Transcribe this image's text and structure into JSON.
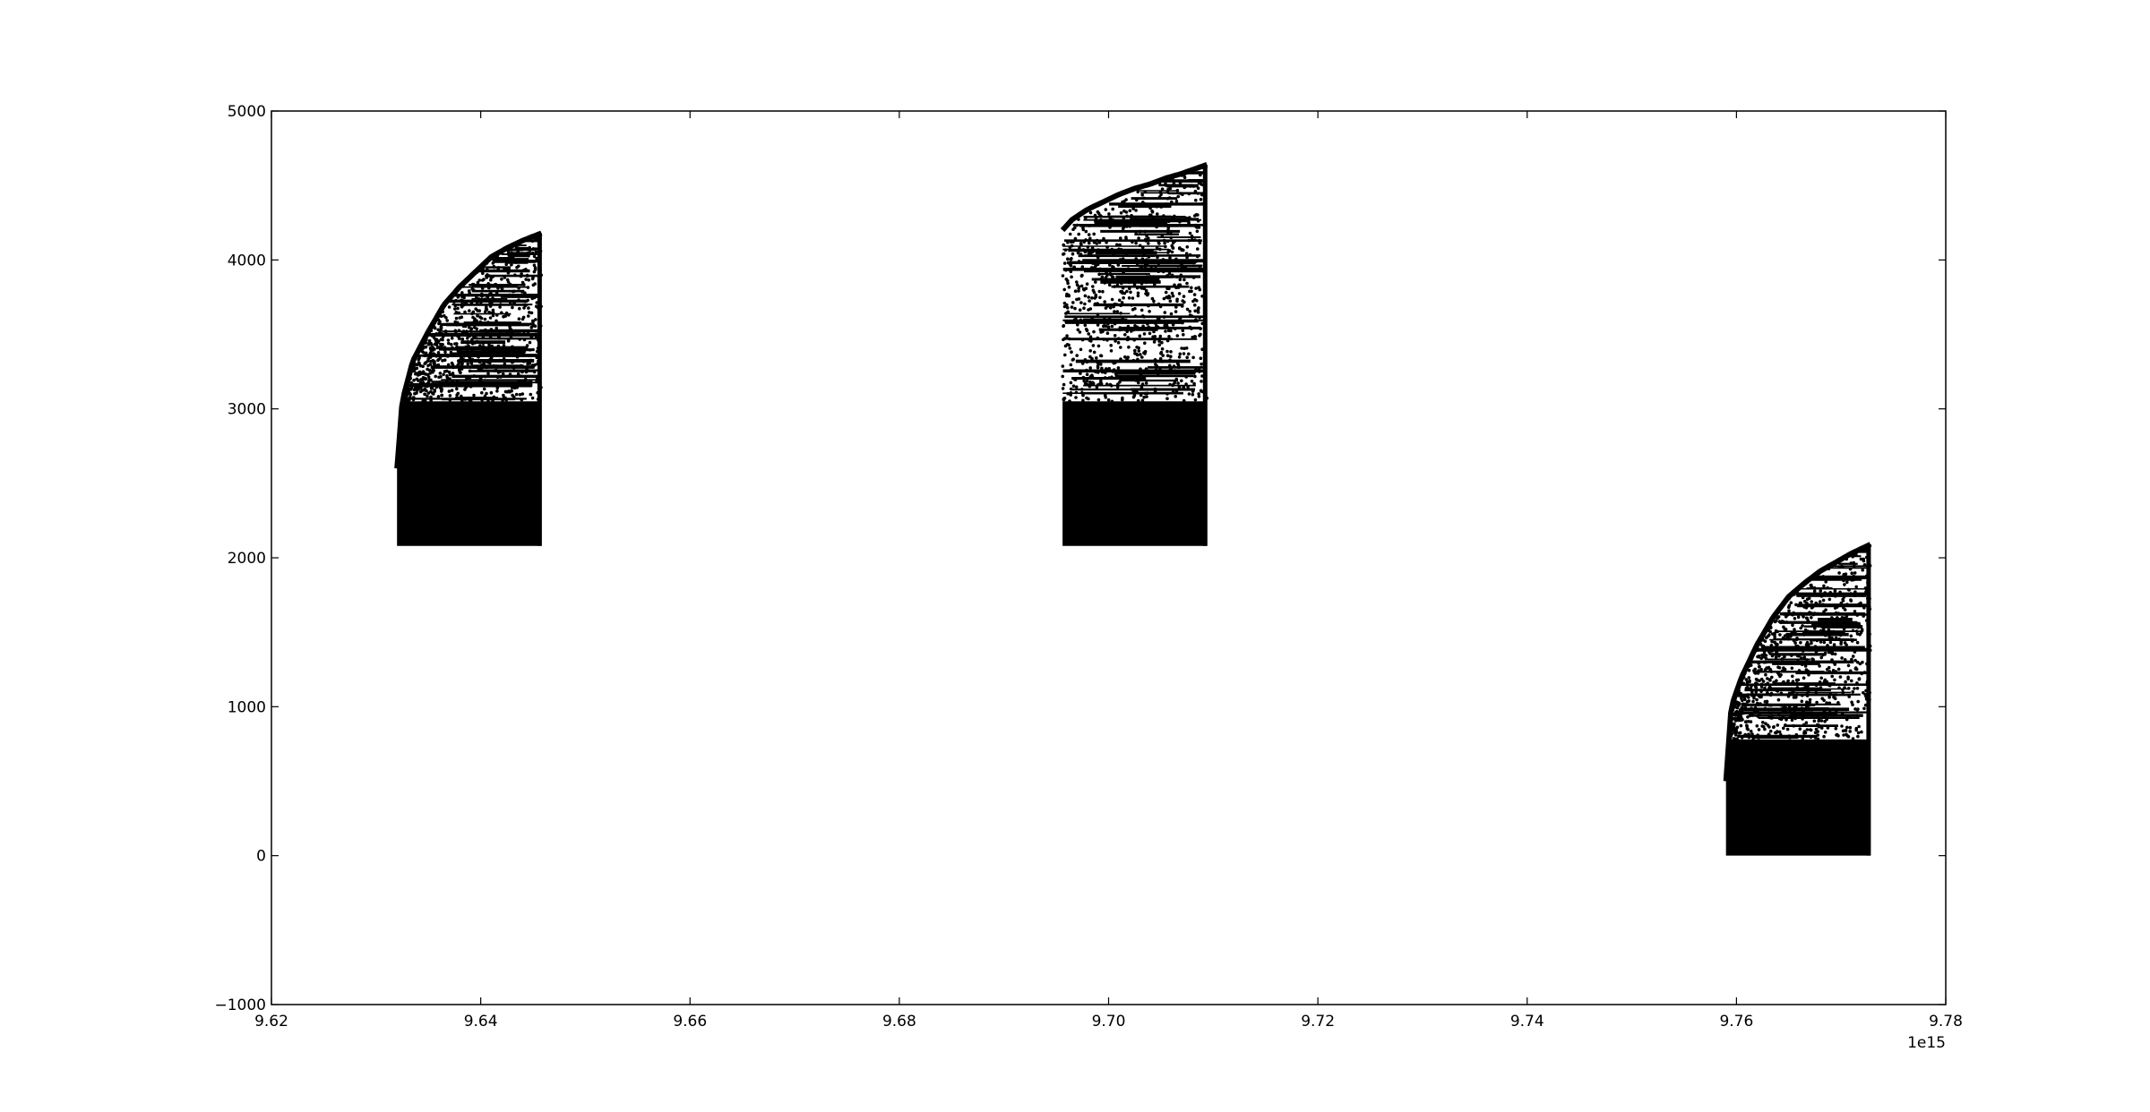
{
  "chart_data": {
    "type": "scatter",
    "title": "",
    "xlabel": "",
    "ylabel": "",
    "x_offset_label": "1e15",
    "xlim": [
      9.62,
      9.78
    ],
    "ylim": [
      -1000,
      5000
    ],
    "x_ticks": [
      9.62,
      9.64,
      9.66,
      9.68,
      9.7,
      9.72,
      9.74,
      9.76,
      9.78
    ],
    "x_tick_labels": [
      "9.62",
      "9.64",
      "9.66",
      "9.68",
      "9.70",
      "9.72",
      "9.74",
      "9.76",
      "9.78"
    ],
    "y_ticks": [
      -1000,
      0,
      1000,
      2000,
      3000,
      4000,
      5000
    ],
    "y_tick_labels": [
      "−1000",
      "0",
      "1000",
      "2000",
      "3000",
      "4000",
      "5000"
    ],
    "grid": false,
    "marker_color": "#000000",
    "clusters": [
      {
        "x_range": [
          9.632,
          9.6458
        ],
        "y_base": 2080,
        "dense_top": 3050,
        "upper_envelope": [
          [
            9.632,
            2600
          ],
          [
            9.6325,
            3050
          ],
          [
            9.6335,
            3320
          ],
          [
            9.635,
            3520
          ],
          [
            9.6365,
            3700
          ],
          [
            9.638,
            3820
          ],
          [
            9.6395,
            3920
          ],
          [
            9.641,
            4020
          ],
          [
            9.6425,
            4080
          ],
          [
            9.644,
            4130
          ],
          [
            9.6458,
            4180
          ]
        ]
      },
      {
        "x_range": [
          9.6956,
          9.7094
        ],
        "y_base": 2080,
        "dense_top": 3050,
        "upper_envelope": [
          [
            9.6956,
            4200
          ],
          [
            9.6965,
            4270
          ],
          [
            9.698,
            4340
          ],
          [
            9.6995,
            4390
          ],
          [
            9.701,
            4440
          ],
          [
            9.7025,
            4480
          ],
          [
            9.704,
            4510
          ],
          [
            9.7055,
            4550
          ],
          [
            9.707,
            4580
          ],
          [
            9.7094,
            4640
          ]
        ]
      },
      {
        "x_range": [
          9.759,
          9.7728
        ],
        "y_base": 0,
        "dense_top": 780,
        "upper_envelope": [
          [
            9.759,
            500
          ],
          [
            9.7595,
            1000
          ],
          [
            9.7605,
            1200
          ],
          [
            9.762,
            1420
          ],
          [
            9.7635,
            1600
          ],
          [
            9.765,
            1740
          ],
          [
            9.7665,
            1830
          ],
          [
            9.768,
            1910
          ],
          [
            9.7695,
            1970
          ],
          [
            9.771,
            2030
          ],
          [
            9.7728,
            2090
          ]
        ]
      }
    ]
  }
}
